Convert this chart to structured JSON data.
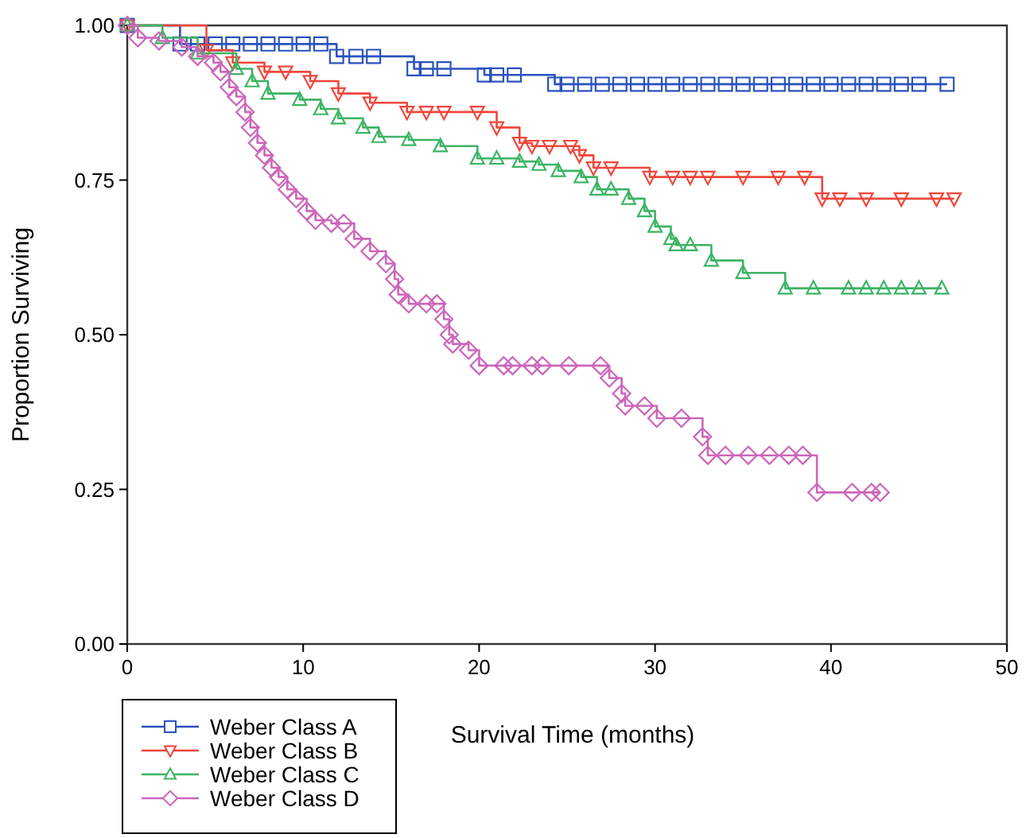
{
  "chart_data": {
    "type": "step",
    "xlabel": "Survival Time (months)",
    "ylabel": "Proportion Surviving",
    "xlim": [
      0,
      50
    ],
    "xticks": [
      0,
      10,
      20,
      30,
      40,
      50
    ],
    "ylim": [
      0,
      1
    ],
    "yticks": [
      {
        "value": 0,
        "label": "0.00"
      },
      {
        "value": 0.25,
        "label": "0.25"
      },
      {
        "value": 0.5,
        "label": "0.50"
      },
      {
        "value": 0.75,
        "label": "0.75"
      },
      {
        "value": 1,
        "label": "1.00"
      }
    ],
    "grid": false,
    "legend": "bottom left",
    "line_style": "solid",
    "series": [
      {
        "name": "Weber Class A",
        "color": "#2a52be",
        "marker": "square",
        "x": [
          0,
          3,
          4,
          5,
          6,
          7,
          8,
          9,
          10,
          11,
          11.9,
          13,
          14,
          16.3,
          17,
          18,
          20.3,
          21,
          22,
          24.3,
          25,
          26,
          27,
          28,
          29,
          30,
          31,
          32,
          33,
          34,
          35,
          36,
          37,
          38,
          39,
          40,
          41,
          42,
          43,
          44,
          45,
          46.6
        ],
        "values": [
          1,
          0.97,
          0.97,
          0.97,
          0.97,
          0.97,
          0.97,
          0.97,
          0.97,
          0.97,
          0.95,
          0.95,
          0.95,
          0.93,
          0.93,
          0.93,
          0.92,
          0.92,
          0.92,
          0.905,
          0.905,
          0.905,
          0.905,
          0.905,
          0.905,
          0.905,
          0.905,
          0.905,
          0.905,
          0.905,
          0.905,
          0.905,
          0.905,
          0.905,
          0.905,
          0.905,
          0.905,
          0.905,
          0.905,
          0.905,
          0.905,
          0.905
        ]
      },
      {
        "name": "Weber Class B",
        "color": "#f0463c",
        "marker": "triangle-down",
        "x": [
          0,
          4.5,
          6,
          7.8,
          9,
          10.4,
          12,
          13.8,
          15.9,
          17,
          18,
          19.9,
          21,
          22.3,
          23,
          24,
          25.2,
          25.7,
          26.5,
          27.5,
          29.7,
          31,
          32,
          33,
          35,
          37,
          38.5,
          39.5,
          40.5,
          42,
          44,
          46,
          47
        ],
        "values": [
          1,
          0.96,
          0.94,
          0.925,
          0.925,
          0.91,
          0.89,
          0.875,
          0.86,
          0.86,
          0.86,
          0.86,
          0.835,
          0.81,
          0.805,
          0.805,
          0.805,
          0.79,
          0.77,
          0.77,
          0.755,
          0.755,
          0.755,
          0.755,
          0.755,
          0.755,
          0.755,
          0.72,
          0.72,
          0.72,
          0.72,
          0.72,
          0.72
        ]
      },
      {
        "name": "Weber Class C",
        "color": "#3cb464",
        "marker": "triangle",
        "x": [
          0,
          2,
          4,
          6.2,
          7.1,
          8,
          9.8,
          11,
          12,
          13.4,
          14.3,
          16,
          17.8,
          19.9,
          21,
          22.3,
          23.4,
          24.5,
          25.8,
          26.7,
          27.5,
          28.5,
          29.4,
          30,
          30.9,
          31.2,
          32,
          33.2,
          35,
          37.4,
          39,
          41,
          42,
          43,
          44,
          45,
          46.3
        ],
        "values": [
          1,
          0.98,
          0.955,
          0.93,
          0.91,
          0.89,
          0.88,
          0.865,
          0.85,
          0.835,
          0.82,
          0.815,
          0.805,
          0.785,
          0.785,
          0.78,
          0.775,
          0.765,
          0.755,
          0.735,
          0.735,
          0.72,
          0.7,
          0.675,
          0.655,
          0.645,
          0.645,
          0.62,
          0.6,
          0.575,
          0.575,
          0.575,
          0.575,
          0.575,
          0.575,
          0.575,
          0.575
        ]
      },
      {
        "name": "Weber Class D",
        "color": "#cc66bb",
        "marker": "diamond",
        "x": [
          0,
          0.6,
          1.8,
          3.1,
          4,
          4.9,
          5.3,
          5.8,
          6.2,
          6.7,
          7,
          7.4,
          7.8,
          8.2,
          8.6,
          9.1,
          9.6,
          10.2,
          10.7,
          11.6,
          12.3,
          12.9,
          13.8,
          14.7,
          15.2,
          15.4,
          16,
          17,
          17.6,
          18,
          18.3,
          18.5,
          19.4,
          20,
          21.4,
          21.9,
          23,
          23.6,
          25.1,
          26.9,
          27.4,
          28.1,
          28.3,
          29.4,
          30.1,
          31.5,
          32.7,
          33,
          34,
          35.3,
          36.5,
          37.6,
          38.4,
          39.2,
          41.2,
          42.3,
          42.8
        ],
        "values": [
          1,
          0.98,
          0.975,
          0.965,
          0.95,
          0.94,
          0.925,
          0.9,
          0.885,
          0.86,
          0.835,
          0.81,
          0.79,
          0.77,
          0.755,
          0.735,
          0.72,
          0.7,
          0.685,
          0.68,
          0.68,
          0.655,
          0.635,
          0.615,
          0.59,
          0.565,
          0.55,
          0.55,
          0.55,
          0.525,
          0.5,
          0.485,
          0.475,
          0.45,
          0.45,
          0.45,
          0.45,
          0.45,
          0.45,
          0.45,
          0.43,
          0.405,
          0.385,
          0.385,
          0.365,
          0.365,
          0.335,
          0.305,
          0.305,
          0.305,
          0.305,
          0.305,
          0.305,
          0.245,
          0.245,
          0.245,
          0.245
        ]
      }
    ]
  }
}
